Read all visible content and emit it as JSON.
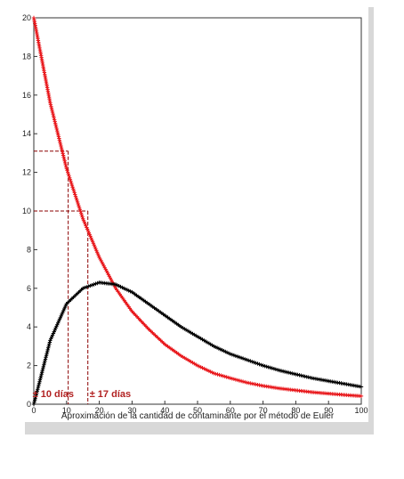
{
  "chart_data": {
    "type": "line",
    "title": "",
    "xlabel": "Aproximación de la cantidad de contaminante por el método de Euler",
    "ylabel": "",
    "xlim": [
      0,
      100
    ],
    "ylim": [
      0,
      20
    ],
    "x_ticks": [
      "0",
      "10",
      "20",
      "30",
      "40",
      "50",
      "60",
      "70",
      "80",
      "90",
      "100"
    ],
    "y_ticks": [
      "0",
      "2",
      "4",
      "6",
      "8",
      "10",
      "12",
      "14",
      "16",
      "18",
      "20"
    ],
    "grid": false,
    "series": [
      {
        "color": "#e8171b",
        "marker": "+",
        "x": [
          0,
          5,
          10,
          15,
          20,
          25,
          30,
          35,
          40,
          45,
          50,
          55,
          60,
          65,
          70,
          75,
          80,
          85,
          90,
          95,
          100
        ],
        "values": [
          20.0,
          15.6,
          12.2,
          9.6,
          7.6,
          6.0,
          4.8,
          3.9,
          3.1,
          2.5,
          2.0,
          1.6,
          1.35,
          1.12,
          0.95,
          0.82,
          0.72,
          0.62,
          0.55,
          0.48,
          0.42
        ]
      },
      {
        "color": "#000000",
        "marker": "+",
        "x": [
          0,
          5,
          10,
          15,
          20,
          25,
          30,
          35,
          40,
          45,
          50,
          55,
          60,
          65,
          70,
          75,
          80,
          85,
          90,
          95,
          100
        ],
        "values": [
          0.0,
          3.3,
          5.2,
          6.0,
          6.3,
          6.2,
          5.8,
          5.2,
          4.6,
          4.0,
          3.5,
          3.0,
          2.6,
          2.3,
          2.0,
          1.75,
          1.55,
          1.35,
          1.2,
          1.05,
          0.9
        ]
      }
    ],
    "annotations": [
      {
        "label": "± 10 días",
        "x": 10.5,
        "y": 13.1
      },
      {
        "label": "± 17 días",
        "x": 16.5,
        "y": 10.0
      }
    ]
  }
}
